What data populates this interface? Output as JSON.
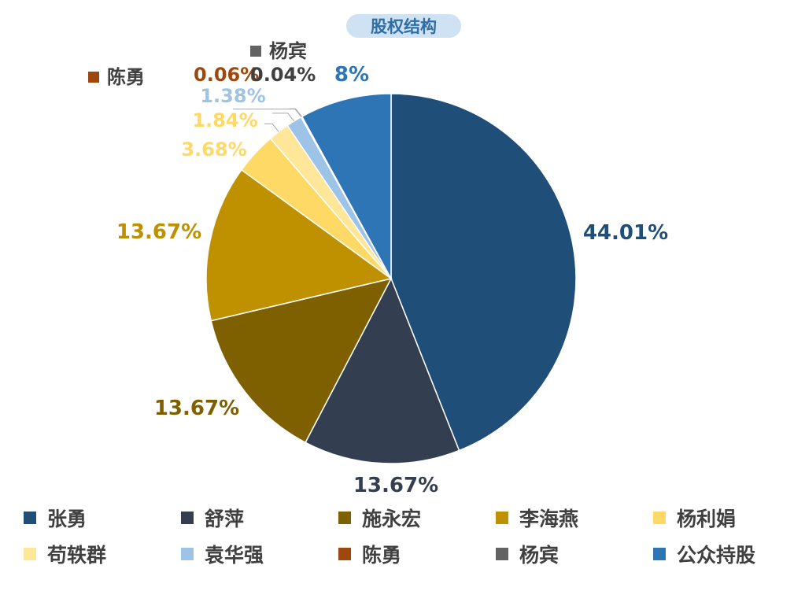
{
  "chart_data": {
    "type": "pie",
    "title": "股权结构",
    "slices": [
      {
        "name": "张勇",
        "value": 44.01,
        "label": "44.01%",
        "color": "#1f4e79"
      },
      {
        "name": "舒萍",
        "value": 13.67,
        "label": "13.67%",
        "color": "#333f50"
      },
      {
        "name": "施永宏",
        "value": 13.67,
        "label": "13.67%",
        "color": "#7f6000"
      },
      {
        "name": "李海燕",
        "value": 13.67,
        "label": "13.67%",
        "color": "#bf9000"
      },
      {
        "name": "杨利娟",
        "value": 3.68,
        "label": "3.68%",
        "color": "#ffd966"
      },
      {
        "name": "苟轶群",
        "value": 1.84,
        "label": "1.84%",
        "color": "#ffe699"
      },
      {
        "name": "袁华强",
        "value": 1.38,
        "label": "1.38%",
        "color": "#9dc3e6"
      },
      {
        "name": "陈勇",
        "value": 0.06,
        "label": "0.06%",
        "color": "#9e480e"
      },
      {
        "name": "杨宾",
        "value": 0.04,
        "label": "0.04%",
        "color": "#636363"
      },
      {
        "name": "公众持股",
        "value": 8,
        "label": "8%",
        "color": "#2e75b6"
      }
    ],
    "legend_position": "bottom"
  }
}
